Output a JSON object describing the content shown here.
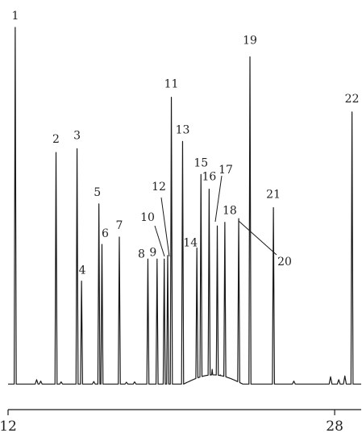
{
  "chart_data": {
    "type": "line",
    "title": "",
    "xlabel": "",
    "ylabel": "",
    "xlim": [
      12,
      29.3
    ],
    "ylim": [
      0,
      100
    ],
    "x_ticks": [
      {
        "value": 12,
        "label": "12"
      },
      {
        "value": 28,
        "label": "28"
      }
    ],
    "baseline": 3,
    "grid": false,
    "line_color": "#1a1a1a",
    "peaks": [
      {
        "label": "1",
        "x": 12.35,
        "height": 100
      },
      {
        "label": "2",
        "x": 14.35,
        "height": 66
      },
      {
        "label": "3",
        "x": 15.38,
        "height": 67
      },
      {
        "label": "4",
        "x": 15.6,
        "height": 31
      },
      {
        "label": "5",
        "x": 16.45,
        "height": 52
      },
      {
        "label": "6",
        "x": 16.6,
        "height": 41
      },
      {
        "label": "7",
        "x": 17.45,
        "height": 43
      },
      {
        "label": "8",
        "x": 18.85,
        "height": 37
      },
      {
        "label": "9",
        "x": 19.3,
        "height": 37
      },
      {
        "label": "10",
        "x": 19.65,
        "height": 37
      },
      {
        "label": "11",
        "x": 20.0,
        "height": 81
      },
      {
        "label": "12",
        "x": 19.82,
        "height": 38
      },
      {
        "label": "13",
        "x": 20.55,
        "height": 69
      },
      {
        "label": "14",
        "x": 21.25,
        "height": 40
      },
      {
        "label": "15",
        "x": 21.45,
        "height": 60
      },
      {
        "label": "16",
        "x": 21.85,
        "height": 56
      },
      {
        "label": "17",
        "x": 22.25,
        "height": 46
      },
      {
        "label": "18",
        "x": 22.62,
        "height": 47
      },
      {
        "label": "19",
        "x": 23.85,
        "height": 92
      },
      {
        "label": "20",
        "x": 23.3,
        "height": 48
      },
      {
        "label": "21",
        "x": 25.0,
        "height": 51
      },
      {
        "label": "22",
        "x": 28.85,
        "height": 77
      }
    ]
  }
}
